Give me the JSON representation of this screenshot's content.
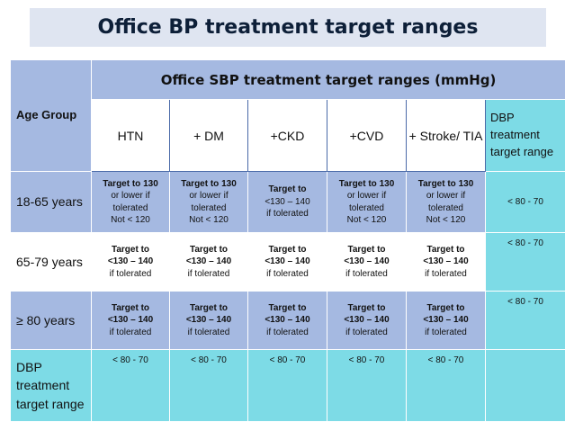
{
  "title": "Office BP treatment target ranges",
  "header": {
    "age_group": "Age Group",
    "span_title": "Office SBP treatment target ranges (mmHg)",
    "columns": [
      "HTN",
      "+ DM",
      "+CKD",
      "+CVD",
      "+ Stroke/ TIA"
    ],
    "dbp_col": "DBP treatment target range"
  },
  "rows": [
    {
      "age": "18-65 years",
      "cells": [
        [
          "Target to 130",
          "or lower if",
          "tolerated",
          "Not < 120"
        ],
        [
          "Target to 130",
          "or lower if",
          "tolerated",
          "Not < 120"
        ],
        [
          "Target to",
          "<130 – 140",
          "if tolerated"
        ],
        [
          "Target to 130",
          "or lower if",
          "tolerated",
          "Not < 120"
        ],
        [
          "Target to 130",
          "or lower if",
          "tolerated",
          "Not < 120"
        ]
      ],
      "dbp": "< 80 - 70"
    },
    {
      "age": "65-79 years",
      "cells": [
        [
          "Target to",
          "<130 – 140",
          "if tolerated"
        ],
        [
          "Target to",
          "<130 – 140",
          "if tolerated"
        ],
        [
          "Target to",
          "<130 – 140",
          "if tolerated"
        ],
        [
          "Target to",
          "<130 – 140",
          "if tolerated"
        ],
        [
          "Target to",
          "<130 – 140",
          "if tolerated"
        ]
      ],
      "dbp": "< 80 - 70"
    },
    {
      "age": "≥ 80 years",
      "cells": [
        [
          "Target to",
          "<130 – 140",
          "if tolerated"
        ],
        [
          "Target to",
          "<130 – 140",
          "if tolerated"
        ],
        [
          "Target to",
          "<130 – 140",
          "if tolerated"
        ],
        [
          "Target to",
          "<130 – 140",
          "if tolerated"
        ],
        [
          "Target to",
          "<130 – 140",
          "if tolerated"
        ]
      ],
      "dbp": "< 80 - 70"
    }
  ],
  "footer": {
    "label": "DBP treatment target range",
    "values": [
      "< 80 - 70",
      "< 80 - 70",
      "< 80 - 70",
      "< 80 - 70",
      "< 80 - 70"
    ]
  },
  "colors": {
    "header_blue": "#a5b9e1",
    "cyan": "#7ddbe6",
    "title_bg": "#dfe5f1",
    "title_text": "#0d1f38"
  }
}
